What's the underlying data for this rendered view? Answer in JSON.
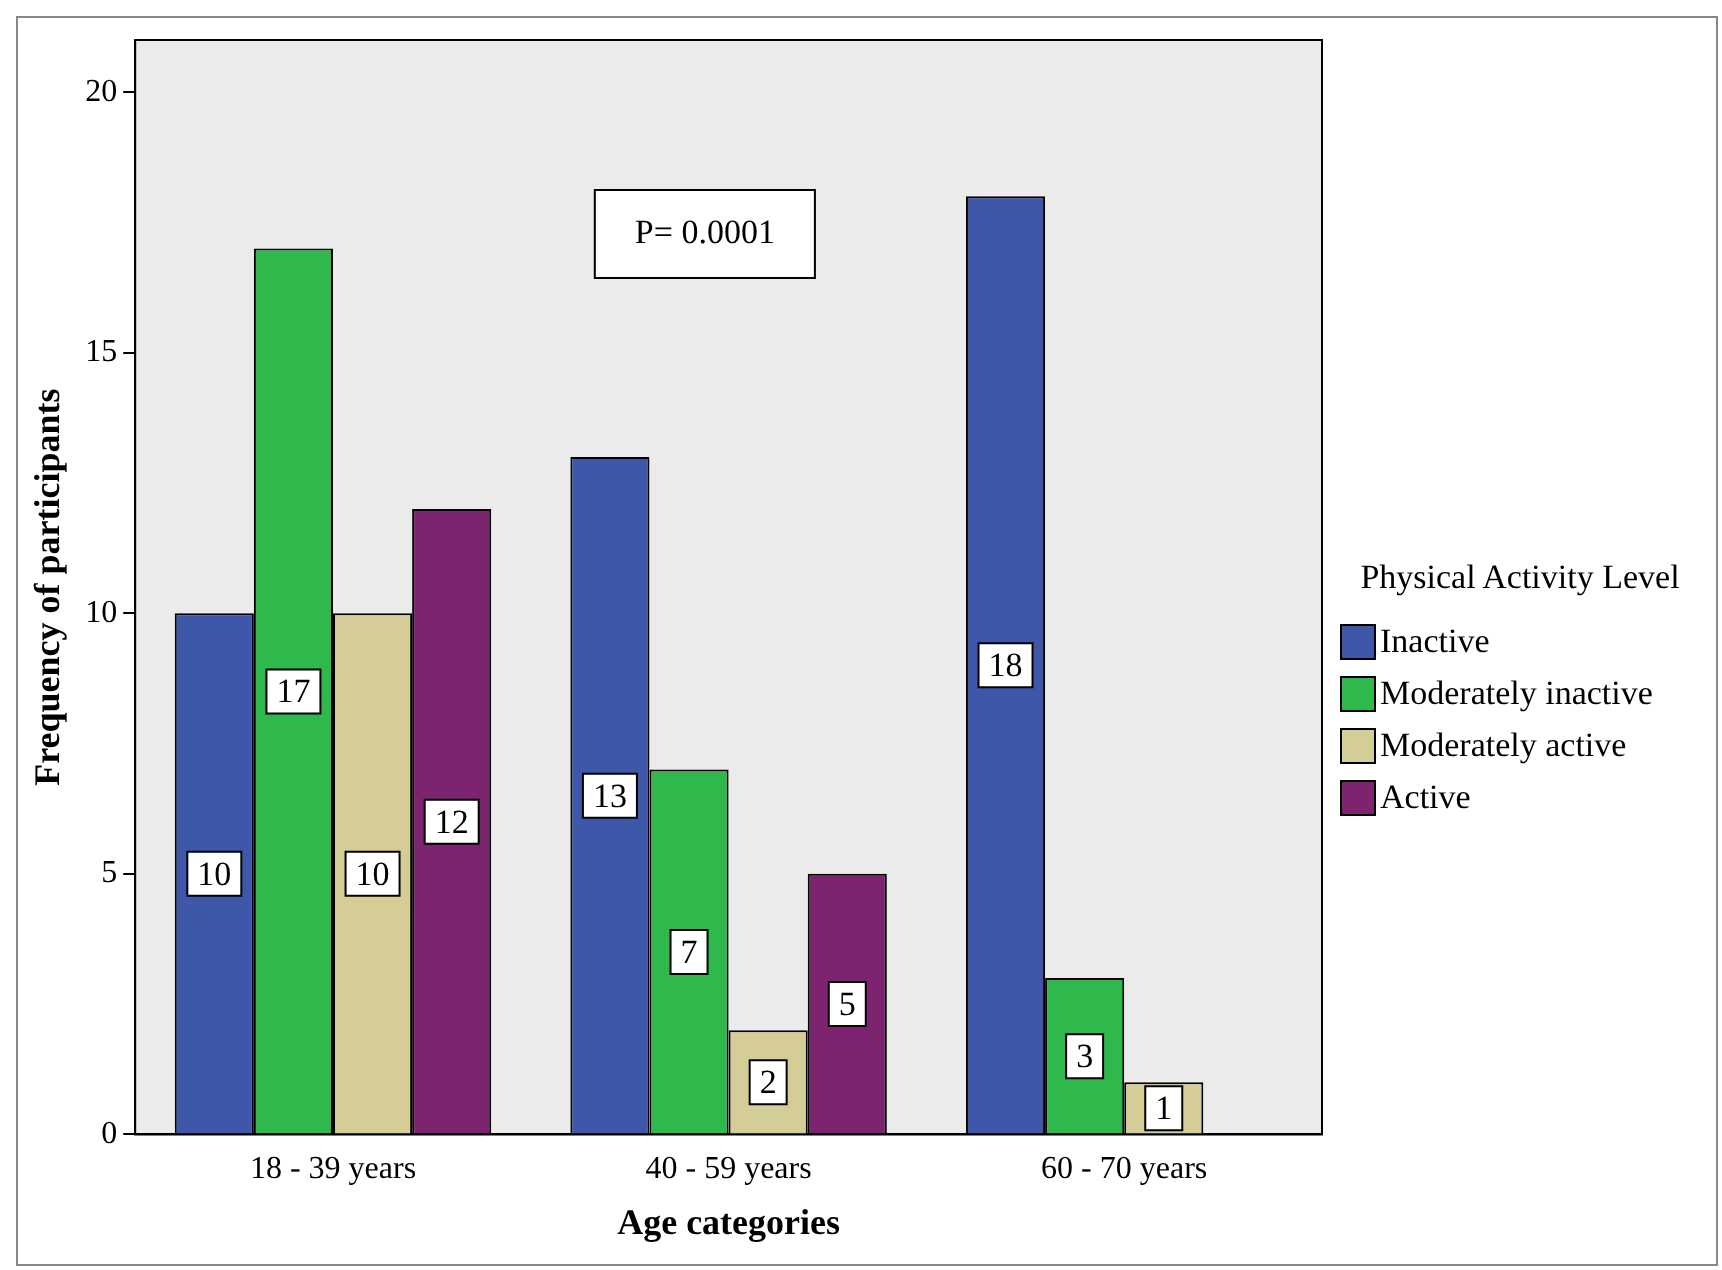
{
  "chart_data": {
    "type": "bar",
    "xlabel": "Age categories",
    "ylabel": "Frequency of participants",
    "legend_title": "Physical Activity Level",
    "categories": [
      "18 - 39 years",
      "40 - 59 years",
      "60 - 70 years"
    ],
    "series": [
      {
        "name": "Inactive",
        "color": "#3e57a9",
        "values": [
          10,
          13,
          18
        ]
      },
      {
        "name": "Moderately inactive",
        "color": "#2fb84b",
        "values": [
          17,
          7,
          3
        ]
      },
      {
        "name": "Moderately active",
        "color": "#d5cd97",
        "values": [
          10,
          2,
          1
        ]
      },
      {
        "name": "Active",
        "color": "#7d2470",
        "values": [
          12,
          5,
          null
        ]
      }
    ],
    "ylim": [
      0,
      21
    ],
    "yticks": [
      0,
      5,
      10,
      15,
      20
    ],
    "grid": false,
    "legend": "right",
    "data_labels": true,
    "annotations": [
      "P= 0.0001"
    ]
  }
}
